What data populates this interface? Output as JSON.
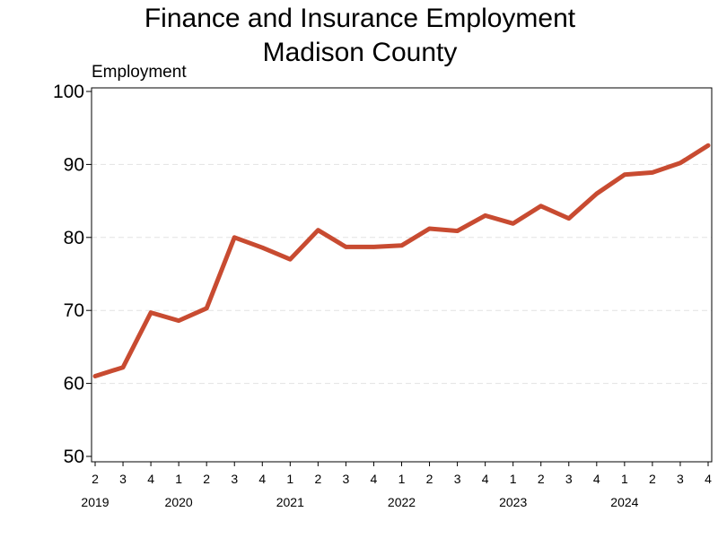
{
  "chart_data": {
    "type": "line",
    "title_line1": "Finance and Insurance Employment",
    "title_line2": "Madison County",
    "ylabel": "Employment",
    "xlabel": "",
    "ylim": [
      50,
      100
    ],
    "yticks": [
      "50",
      "60",
      "70",
      "80",
      "90",
      "100"
    ],
    "grid": "horizontal dashed",
    "legend": "none",
    "x": [
      "2019 Q2",
      "2019 Q3",
      "2019 Q4",
      "2020 Q1",
      "2020 Q2",
      "2020 Q3",
      "2020 Q4",
      "2021 Q1",
      "2021 Q2",
      "2021 Q3",
      "2021 Q4",
      "2022 Q1",
      "2022 Q2",
      "2022 Q3",
      "2022 Q4",
      "2023 Q1",
      "2023 Q2",
      "2023 Q3",
      "2023 Q4",
      "2024 Q1",
      "2024 Q2",
      "2024 Q3",
      "2024 Q4"
    ],
    "quarter_labels": [
      "2",
      "3",
      "4",
      "1",
      "2",
      "3",
      "4",
      "1",
      "2",
      "3",
      "4",
      "1",
      "2",
      "3",
      "4",
      "1",
      "2",
      "3",
      "4",
      "1",
      "2",
      "3",
      "4"
    ],
    "year_labels": [
      {
        "label": "2019",
        "quarter_index": 0
      },
      {
        "label": "2020",
        "quarter_index": 3
      },
      {
        "label": "2021",
        "quarter_index": 7
      },
      {
        "label": "2022",
        "quarter_index": 11
      },
      {
        "label": "2023",
        "quarter_index": 15
      },
      {
        "label": "2024",
        "quarter_index": 19
      }
    ],
    "series": [
      {
        "color": "#c84b31",
        "values": [
          61.0,
          62.2,
          69.7,
          68.6,
          70.3,
          80.0,
          78.6,
          77.0,
          81.0,
          78.7,
          78.7,
          78.9,
          81.2,
          80.9,
          83.0,
          81.9,
          84.3,
          82.6,
          86.0,
          88.6,
          88.9,
          90.2,
          92.6
        ]
      }
    ]
  }
}
